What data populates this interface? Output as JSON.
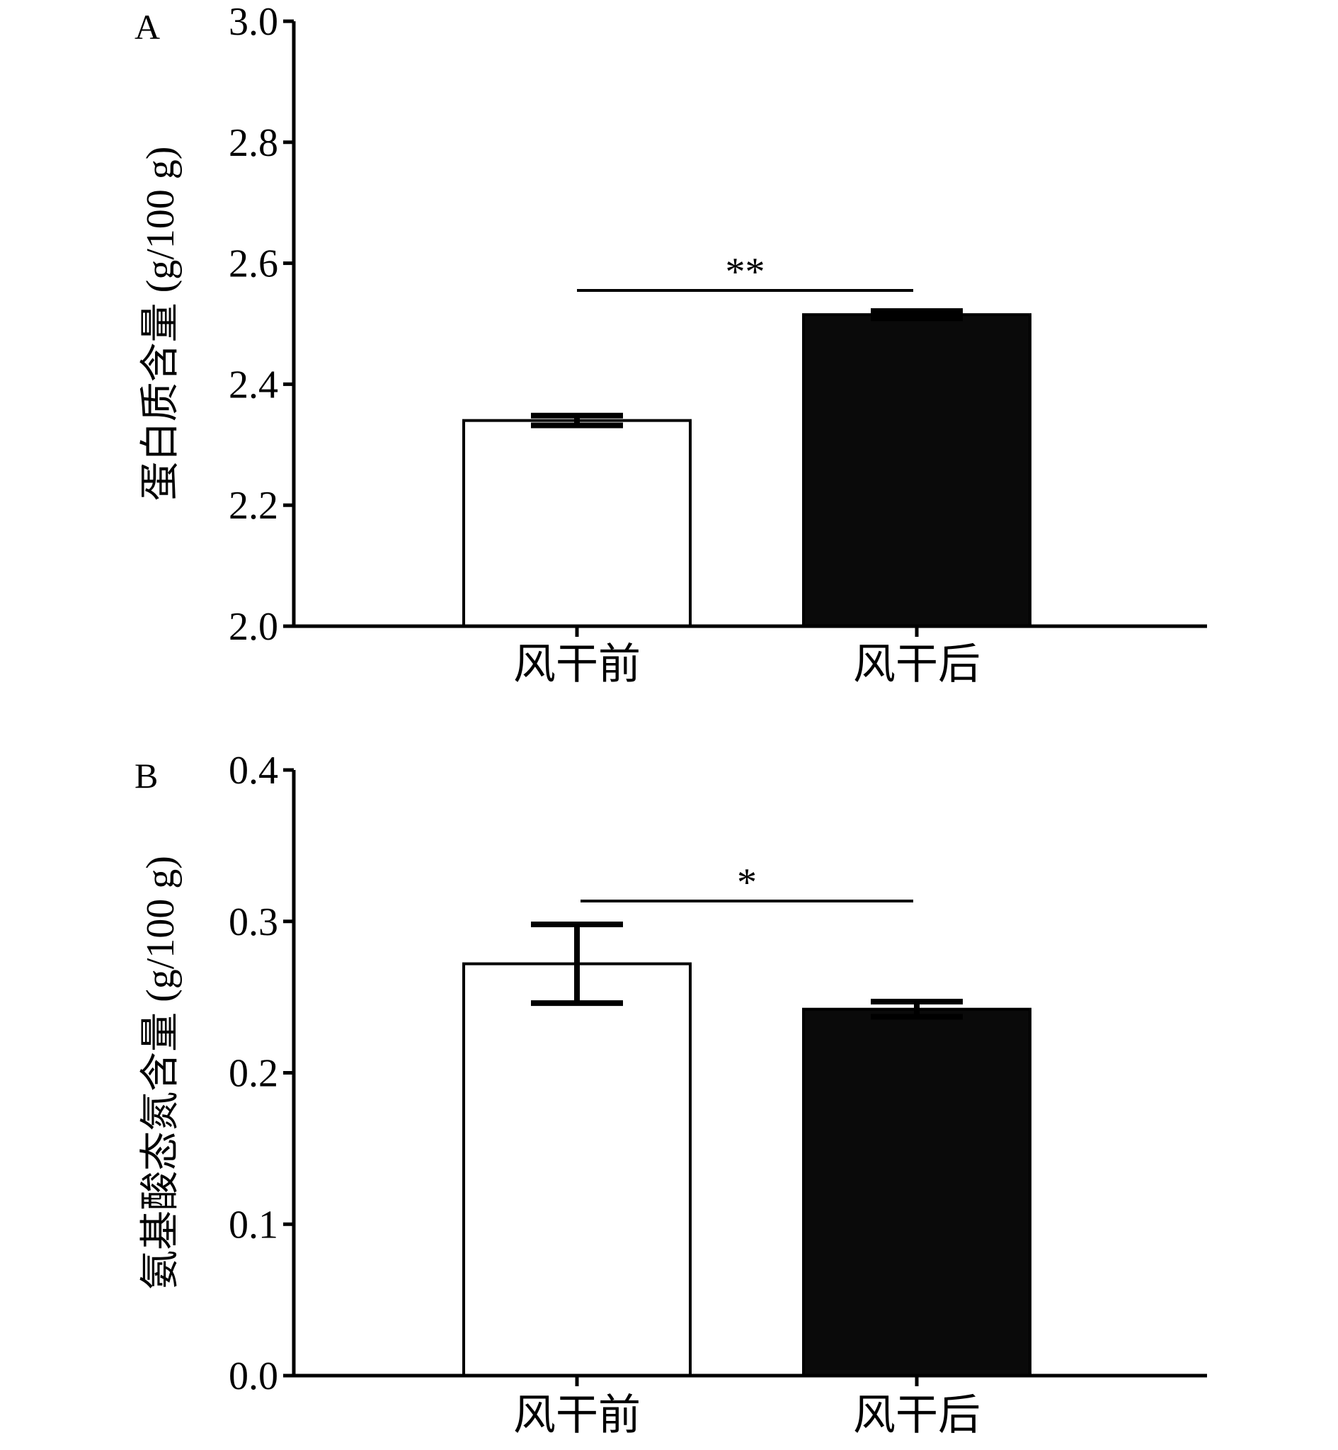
{
  "colors": {
    "bar_before": "#ffffff",
    "bar_after": "#0a0a0a",
    "axis": "#000000"
  },
  "chart_data": [
    {
      "panel": "A",
      "type": "bar",
      "categories": [
        "风干前",
        "风干后"
      ],
      "values": [
        2.34,
        2.515
      ],
      "errors": [
        0.008,
        0.006
      ],
      "ylabel": "蛋白质含量 (g/100 g)",
      "xlabel": "",
      "ylim": [
        2.0,
        3.0
      ],
      "yticks": [
        2.0,
        2.2,
        2.4,
        2.6,
        2.8,
        3.0
      ],
      "tick_decimals": 1,
      "grid": false,
      "legend": "none",
      "significance": "**"
    },
    {
      "panel": "B",
      "type": "bar",
      "categories": [
        "风干前",
        "风干后"
      ],
      "values": [
        0.272,
        0.242
      ],
      "errors": [
        0.026,
        0.005
      ],
      "ylabel": "氨基酸态氮含量 (g/100 g)",
      "xlabel": "",
      "ylim": [
        0.0,
        0.4
      ],
      "yticks": [
        0.0,
        0.1,
        0.2,
        0.3,
        0.4
      ],
      "tick_decimals": 1,
      "grid": false,
      "legend": "none",
      "significance": "*"
    }
  ]
}
